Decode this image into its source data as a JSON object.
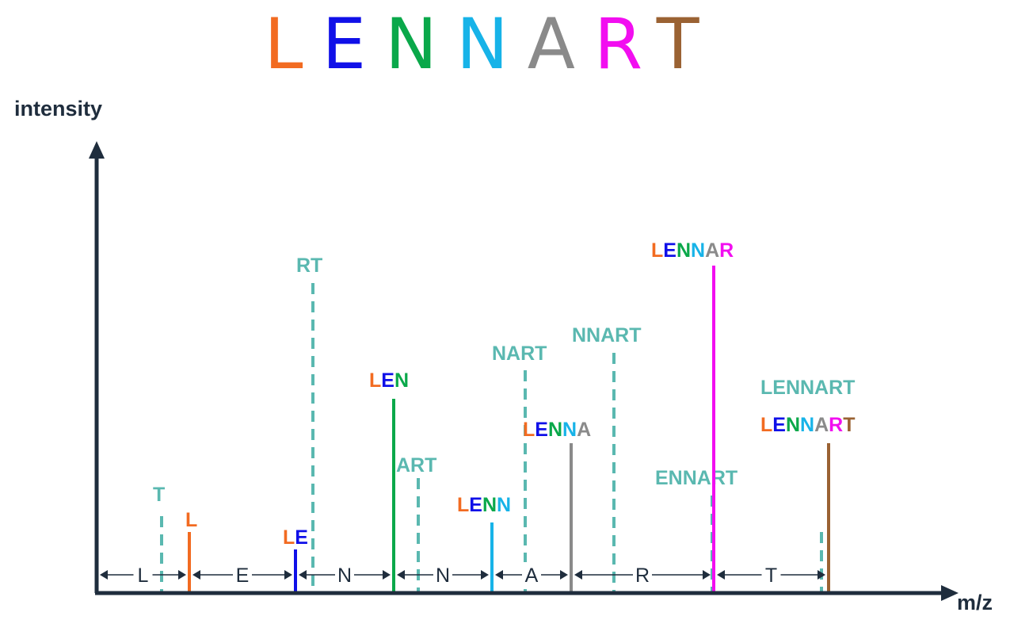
{
  "title": {
    "letters": [
      {
        "char": "L",
        "color": "#f26b21"
      },
      {
        "char": "E",
        "color": "#1010e8"
      },
      {
        "char": "N",
        "color": "#0aa84a"
      },
      {
        "char": "N",
        "color": "#17b3e8"
      },
      {
        "char": "A",
        "color": "#8a8a8a"
      },
      {
        "char": "R",
        "color": "#f20ef0"
      },
      {
        "char": "T",
        "color": "#9a6233"
      }
    ]
  },
  "axes": {
    "ylabel": "intensity",
    "xlabel": "m/z"
  },
  "colors": {
    "L": "#f26b21",
    "E": "#1010e8",
    "N1": "#0aa84a",
    "N2": "#17b3e8",
    "A": "#8a8a8a",
    "R": "#f20ef0",
    "T": "#9a6233",
    "y_ion": "#5ab8b0",
    "axis": "#1f2d3d"
  },
  "b_ions": [
    {
      "name": "L",
      "letters": [
        "L"
      ],
      "colors": [
        "#f26b21"
      ],
      "line_color": "#f26b21"
    },
    {
      "name": "LE",
      "letters": [
        "L",
        "E"
      ],
      "colors": [
        "#f26b21",
        "#1010e8"
      ],
      "line_color": "#1010e8"
    },
    {
      "name": "LEN",
      "letters": [
        "L",
        "E",
        "N"
      ],
      "colors": [
        "#f26b21",
        "#1010e8",
        "#0aa84a"
      ],
      "line_color": "#0aa84a"
    },
    {
      "name": "LENN",
      "letters": [
        "L",
        "E",
        "N",
        "N"
      ],
      "colors": [
        "#f26b21",
        "#1010e8",
        "#0aa84a",
        "#17b3e8"
      ],
      "line_color": "#17b3e8"
    },
    {
      "name": "LENNA",
      "letters": [
        "L",
        "E",
        "N",
        "N",
        "A"
      ],
      "colors": [
        "#f26b21",
        "#1010e8",
        "#0aa84a",
        "#17b3e8",
        "#8a8a8a"
      ],
      "line_color": "#8a8a8a"
    },
    {
      "name": "LENNAR",
      "letters": [
        "L",
        "E",
        "N",
        "N",
        "A",
        "R"
      ],
      "colors": [
        "#f26b21",
        "#1010e8",
        "#0aa84a",
        "#17b3e8",
        "#8a8a8a",
        "#f20ef0"
      ],
      "line_color": "#f20ef0"
    },
    {
      "name": "LENNART",
      "letters": [
        "L",
        "E",
        "N",
        "N",
        "A",
        "R",
        "T"
      ],
      "colors": [
        "#f26b21",
        "#1010e8",
        "#0aa84a",
        "#17b3e8",
        "#8a8a8a",
        "#f20ef0",
        "#9a6233"
      ],
      "line_color": "#9a6233"
    }
  ],
  "y_ions": [
    "T",
    "RT",
    "ART",
    "NART",
    "NNART",
    "ENNART",
    "LENNART"
  ],
  "segments": [
    "L",
    "E",
    "N",
    "N",
    "A",
    "R",
    "T"
  ]
}
